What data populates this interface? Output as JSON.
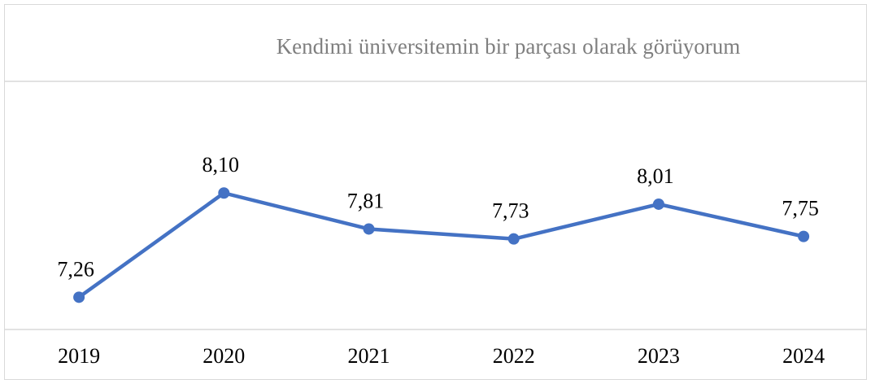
{
  "chart_data": {
    "type": "line",
    "title": "Kendimi üniversitemin bir parçası olarak görüyorum",
    "categories": [
      "2019",
      "2020",
      "2021",
      "2022",
      "2023",
      "2024"
    ],
    "values": [
      7.26,
      8.1,
      7.81,
      7.73,
      8.01,
      7.75
    ],
    "value_labels": [
      "7,26",
      "8,10",
      "7,81",
      "7,73",
      "8,01",
      "7,75"
    ],
    "color": "#4472c4",
    "ylim": [
      7,
      9
    ],
    "yticks": [
      7,
      9
    ],
    "grid": true
  }
}
